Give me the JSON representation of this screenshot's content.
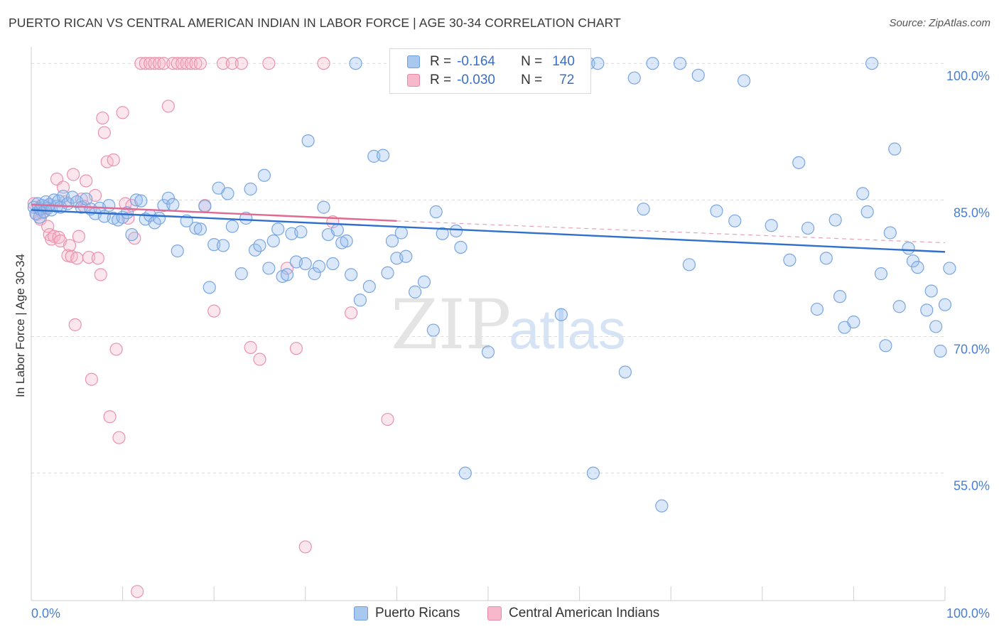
{
  "header": {
    "title": "PUERTO RICAN VS CENTRAL AMERICAN INDIAN IN LABOR FORCE | AGE 30-34 CORRELATION CHART",
    "source": "Source: ZipAtlas.com"
  },
  "watermark": {
    "zip": "ZIP",
    "atlas": "atlas"
  },
  "legend": {
    "rows": [
      {
        "r_label": "R =",
        "r_value": "-0.164",
        "n_label": "N =",
        "n_value": "140",
        "color": "#a9c8f0",
        "stroke": "#6f9fdc"
      },
      {
        "r_label": "R =",
        "r_value": "-0.030",
        "n_label": "N =",
        "n_value": "72",
        "color": "#f7b8cb",
        "stroke": "#e88aa6"
      }
    ]
  },
  "bottom_legend": [
    {
      "label": "Puerto Ricans",
      "color": "#a9c8f0",
      "stroke": "#6f9fdc"
    },
    {
      "label": "Central American Indians",
      "color": "#f7b8cb",
      "stroke": "#e88aa6"
    }
  ],
  "chart_data": {
    "type": "scatter",
    "title": "PUERTO RICAN VS CENTRAL AMERICAN INDIAN IN LABOR FORCE | AGE 30-34 CORRELATION CHART",
    "ylabel": "In Labor Force | Age 30-34",
    "xlabel": "",
    "xlim": [
      0,
      100
    ],
    "ylim": [
      41,
      101.5
    ],
    "x_tick_labels": [
      "0.0%",
      "100.0%"
    ],
    "y_ticks": [
      {
        "value": 100,
        "label": "100.0%"
      },
      {
        "value": 85,
        "label": "85.0%"
      },
      {
        "value": 70,
        "label": "70.0%"
      },
      {
        "value": 55,
        "label": "55.0%"
      }
    ],
    "grid_y": [
      100,
      85,
      70,
      55
    ],
    "series": [
      {
        "name": "Puerto Ricans",
        "color": "#7aa6e0",
        "fill": "rgba(150,190,240,0.35)",
        "trend": {
          "x0": 0,
          "y0": 83.9,
          "x1": 100,
          "y1": 79.3,
          "color": "#2f6fce"
        },
        "points": [
          [
            0.3,
            84.2
          ],
          [
            0.5,
            83.5
          ],
          [
            0.7,
            84.6
          ],
          [
            0.9,
            83.1
          ],
          [
            1.0,
            84.0
          ],
          [
            1.2,
            84.4
          ],
          [
            1.4,
            83.7
          ],
          [
            1.6,
            84.8
          ],
          [
            1.8,
            84.1
          ],
          [
            2.0,
            84.5
          ],
          [
            2.2,
            83.9
          ],
          [
            2.5,
            85.0
          ],
          [
            2.8,
            84.3
          ],
          [
            3.0,
            84.9
          ],
          [
            3.2,
            84.2
          ],
          [
            3.5,
            85.4
          ],
          [
            4.0,
            84.6
          ],
          [
            4.5,
            85.3
          ],
          [
            5.0,
            84.8
          ],
          [
            5.5,
            84.2
          ],
          [
            6.0,
            85.1
          ],
          [
            6.5,
            84.0
          ],
          [
            7.0,
            83.5
          ],
          [
            7.5,
            84.1
          ],
          [
            8.0,
            83.2
          ],
          [
            8.5,
            84.4
          ],
          [
            9.0,
            83.0
          ],
          [
            9.5,
            82.8
          ],
          [
            10.0,
            83.1
          ],
          [
            10.5,
            83.6
          ],
          [
            11.0,
            81.2
          ],
          [
            11.5,
            85.0
          ],
          [
            12.0,
            84.9
          ],
          [
            12.5,
            82.9
          ],
          [
            13.0,
            83.3
          ],
          [
            13.5,
            82.5
          ],
          [
            14.0,
            83.0
          ],
          [
            14.5,
            84.4
          ],
          [
            15.0,
            85.2
          ],
          [
            15.5,
            84.5
          ],
          [
            16.0,
            79.4
          ],
          [
            17.0,
            82.7
          ],
          [
            18.0,
            81.9
          ],
          [
            18.5,
            81.8
          ],
          [
            19.0,
            84.3
          ],
          [
            19.5,
            75.4
          ],
          [
            20.0,
            80.1
          ],
          [
            20.5,
            86.3
          ],
          [
            21.0,
            80.0
          ],
          [
            21.5,
            85.7
          ],
          [
            22.0,
            82.1
          ],
          [
            23.0,
            76.9
          ],
          [
            23.5,
            83.0
          ],
          [
            24.0,
            86.2
          ],
          [
            24.5,
            79.5
          ],
          [
            25.0,
            80.0
          ],
          [
            25.5,
            87.7
          ],
          [
            26.0,
            77.5
          ],
          [
            26.5,
            80.5
          ],
          [
            27.0,
            81.8
          ],
          [
            27.5,
            76.6
          ],
          [
            28.0,
            76.8
          ],
          [
            28.5,
            81.3
          ],
          [
            29.0,
            78.2
          ],
          [
            29.5,
            81.5
          ],
          [
            30.0,
            78.0
          ],
          [
            30.3,
            91.5
          ],
          [
            31.0,
            76.9
          ],
          [
            31.5,
            77.7
          ],
          [
            32.0,
            84.2
          ],
          [
            32.5,
            81.2
          ],
          [
            33.0,
            78.0
          ],
          [
            33.5,
            81.7
          ],
          [
            34.0,
            80.3
          ],
          [
            34.5,
            80.5
          ],
          [
            35.0,
            76.8
          ],
          [
            35.5,
            100.0
          ],
          [
            36.0,
            74.0
          ],
          [
            37.0,
            75.5
          ],
          [
            37.5,
            89.8
          ],
          [
            38.5,
            89.9
          ],
          [
            39.0,
            77.0
          ],
          [
            39.5,
            80.5
          ],
          [
            40.0,
            78.6
          ],
          [
            40.5,
            81.4
          ],
          [
            41.0,
            78.8
          ],
          [
            42.0,
            74.9
          ],
          [
            43.0,
            76.0
          ],
          [
            44.0,
            70.7
          ],
          [
            44.3,
            83.7
          ],
          [
            45.0,
            81.3
          ],
          [
            46.5,
            81.6
          ],
          [
            47.0,
            79.8
          ],
          [
            47.5,
            55.0
          ],
          [
            48.0,
            100.0
          ],
          [
            50.0,
            68.3
          ],
          [
            52.0,
            100.0
          ],
          [
            55.0,
            100.0
          ],
          [
            58.0,
            72.4
          ],
          [
            61.0,
            100.0
          ],
          [
            61.5,
            55.0
          ],
          [
            62.0,
            100.0
          ],
          [
            65.0,
            66.1
          ],
          [
            66.0,
            98.4
          ],
          [
            67.0,
            84.0
          ],
          [
            68.0,
            100.0
          ],
          [
            69.0,
            51.4
          ],
          [
            71.0,
            100.0
          ],
          [
            72.0,
            77.9
          ],
          [
            73.0,
            98.7
          ],
          [
            75.0,
            83.8
          ],
          [
            77.0,
            82.7
          ],
          [
            78.0,
            98.1
          ],
          [
            81.0,
            82.2
          ],
          [
            83.0,
            78.4
          ],
          [
            84.0,
            89.1
          ],
          [
            85.0,
            81.9
          ],
          [
            86.0,
            73.0
          ],
          [
            87.0,
            78.6
          ],
          [
            88.0,
            82.8
          ],
          [
            88.5,
            74.4
          ],
          [
            89.0,
            71.0
          ],
          [
            90.0,
            71.6
          ],
          [
            91.0,
            85.7
          ],
          [
            91.5,
            83.7
          ],
          [
            92.0,
            100.0
          ],
          [
            93.0,
            76.9
          ],
          [
            93.5,
            69.0
          ],
          [
            94.0,
            81.4
          ],
          [
            94.5,
            90.6
          ],
          [
            95.0,
            73.3
          ],
          [
            96.0,
            79.7
          ],
          [
            96.5,
            78.3
          ],
          [
            97.0,
            77.6
          ],
          [
            98.0,
            72.9
          ],
          [
            98.5,
            75.0
          ],
          [
            99.0,
            71.1
          ],
          [
            99.5,
            68.4
          ],
          [
            100.0,
            73.5
          ],
          [
            100.5,
            77.5
          ]
        ]
      },
      {
        "name": "Central American Indians",
        "color": "#ea93ad",
        "fill": "rgba(247,184,203,0.35)",
        "trend": {
          "x0": 0,
          "y0": 84.5,
          "x1": 40,
          "y1": 82.7,
          "color": "#e06a92"
        },
        "trend_ext": {
          "x0": 40,
          "y0": 82.7,
          "x1": 100,
          "y1": 80.3,
          "color": "#e8a3ba"
        },
        "points": [
          [
            0.3,
            84.6
          ],
          [
            0.6,
            83.4
          ],
          [
            0.8,
            84.1
          ],
          [
            1.0,
            82.9
          ],
          [
            1.2,
            83.6
          ],
          [
            1.5,
            84.3
          ],
          [
            1.8,
            82.1
          ],
          [
            2.0,
            81.2
          ],
          [
            2.2,
            80.7
          ],
          [
            2.5,
            81.0
          ],
          [
            2.8,
            87.3
          ],
          [
            3.0,
            80.9
          ],
          [
            3.2,
            80.5
          ],
          [
            3.5,
            86.4
          ],
          [
            3.7,
            84.8
          ],
          [
            4.0,
            78.9
          ],
          [
            4.2,
            80.0
          ],
          [
            4.4,
            78.8
          ],
          [
            4.6,
            87.8
          ],
          [
            4.8,
            71.3
          ],
          [
            5.0,
            78.6
          ],
          [
            5.2,
            81.0
          ],
          [
            5.5,
            85.1
          ],
          [
            5.8,
            84.3
          ],
          [
            6.0,
            87.1
          ],
          [
            6.3,
            78.7
          ],
          [
            6.6,
            65.3
          ],
          [
            7.0,
            85.5
          ],
          [
            7.3,
            78.6
          ],
          [
            7.6,
            76.8
          ],
          [
            7.8,
            94.0
          ],
          [
            8.0,
            92.4
          ],
          [
            8.3,
            89.2
          ],
          [
            8.6,
            61.2
          ],
          [
            9.0,
            89.4
          ],
          [
            9.3,
            68.6
          ],
          [
            9.6,
            58.9
          ],
          [
            10.0,
            94.6
          ],
          [
            10.3,
            84.6
          ],
          [
            10.6,
            83.0
          ],
          [
            11.0,
            84.4
          ],
          [
            11.3,
            80.8
          ],
          [
            11.6,
            42.0
          ],
          [
            12.0,
            100.0
          ],
          [
            12.5,
            100.0
          ],
          [
            13.0,
            100.0
          ],
          [
            13.5,
            100.0
          ],
          [
            14.0,
            100.0
          ],
          [
            14.5,
            100.0
          ],
          [
            15.0,
            95.3
          ],
          [
            15.5,
            100.0
          ],
          [
            16.0,
            100.0
          ],
          [
            16.5,
            100.0
          ],
          [
            17.0,
            100.0
          ],
          [
            17.5,
            100.0
          ],
          [
            18.0,
            100.0
          ],
          [
            18.5,
            100.0
          ],
          [
            19.0,
            84.4
          ],
          [
            20.0,
            72.8
          ],
          [
            21.0,
            100.0
          ],
          [
            22.0,
            100.0
          ],
          [
            23.0,
            100.0
          ],
          [
            24.0,
            68.8
          ],
          [
            25.0,
            67.5
          ],
          [
            26.0,
            100.0
          ],
          [
            28.0,
            77.5
          ],
          [
            29.0,
            68.7
          ],
          [
            30.0,
            46.9
          ],
          [
            32.0,
            100.0
          ],
          [
            33.0,
            82.6
          ],
          [
            35.0,
            72.6
          ],
          [
            39.0,
            60.9
          ]
        ]
      }
    ]
  }
}
